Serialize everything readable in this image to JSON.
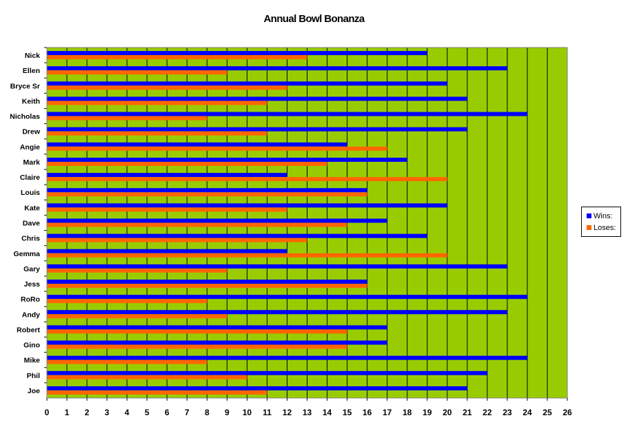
{
  "colors": {
    "plot_bg": "#99CC00",
    "wins": "#0000FF",
    "loses": "#FF6600",
    "grid": "#000000"
  },
  "chart_data": {
    "type": "bar",
    "orientation": "horizontal",
    "title": "Annual Bowl Bonanza",
    "xlabel": "",
    "ylabel": "",
    "xlim": [
      0,
      26
    ],
    "x_ticks": [
      0,
      1,
      2,
      3,
      4,
      5,
      6,
      7,
      8,
      9,
      10,
      11,
      12,
      13,
      14,
      15,
      16,
      17,
      18,
      19,
      20,
      21,
      22,
      23,
      24,
      25,
      26
    ],
    "grid": true,
    "legend_position": "right",
    "categories": [
      "Nick",
      "Ellen",
      "Bryce Sr",
      "Keith",
      "Nicholas",
      "Drew",
      "Angie",
      "Mark",
      "Claire",
      "Louis",
      "Kate",
      "Dave",
      "Chris",
      "Gemma",
      "Gary",
      "Jess",
      "RoRo",
      "Andy",
      "Robert",
      "Gino",
      "Mike",
      "Phil",
      "Joe"
    ],
    "series": [
      {
        "name": "Wins:",
        "values": [
          19,
          23,
          20,
          21,
          24,
          21,
          15,
          18,
          12,
          16,
          20,
          17,
          19,
          12,
          23,
          16,
          24,
          23,
          17,
          17,
          24,
          22,
          21
        ]
      },
      {
        "name": "Loses:",
        "values": [
          13,
          9,
          12,
          11,
          8,
          11,
          17,
          14,
          20,
          16,
          12,
          15,
          13,
          20,
          9,
          16,
          8,
          9,
          15,
          15,
          8,
          10,
          11
        ]
      }
    ]
  }
}
